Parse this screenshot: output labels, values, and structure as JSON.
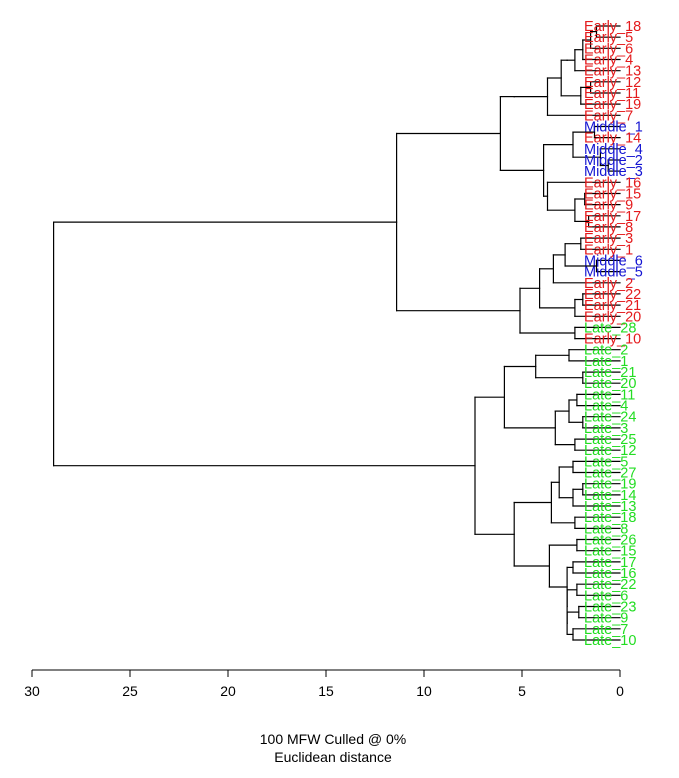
{
  "chart_data": {
    "type": "dendrogram",
    "xlabel": "100 MFW  Culled @ 0%",
    "xlabel2": "Euclidean distance",
    "axis": {
      "ticks": [
        30,
        25,
        20,
        15,
        10,
        5,
        0
      ],
      "xlim": [
        30,
        0
      ],
      "reversed": true
    },
    "group_colors": {
      "Early": "#e41a1c",
      "Middle": "#1414d2",
      "Late": "#22dd22"
    },
    "leaves": [
      {
        "label": "Early_18",
        "group": "Early"
      },
      {
        "label": "Early_5",
        "group": "Early"
      },
      {
        "label": "Early_6",
        "group": "Early"
      },
      {
        "label": "Early_4",
        "group": "Early"
      },
      {
        "label": "Early_13",
        "group": "Early"
      },
      {
        "label": "Early_12",
        "group": "Early"
      },
      {
        "label": "Early_11",
        "group": "Early"
      },
      {
        "label": "Early_19",
        "group": "Early"
      },
      {
        "label": "Early_7",
        "group": "Early"
      },
      {
        "label": "Middle_1",
        "group": "Middle"
      },
      {
        "label": "Early_14",
        "group": "Early"
      },
      {
        "label": "Middle_4",
        "group": "Middle"
      },
      {
        "label": "Middle_2",
        "group": "Middle"
      },
      {
        "label": "Middle_3",
        "group": "Middle"
      },
      {
        "label": "Early_16",
        "group": "Early"
      },
      {
        "label": "Early_15",
        "group": "Early"
      },
      {
        "label": "Early_9",
        "group": "Early"
      },
      {
        "label": "Early_17",
        "group": "Early"
      },
      {
        "label": "Early_8",
        "group": "Early"
      },
      {
        "label": "Early_3",
        "group": "Early"
      },
      {
        "label": "Early_1",
        "group": "Early"
      },
      {
        "label": "Middle_6",
        "group": "Middle"
      },
      {
        "label": "Middle_5",
        "group": "Middle"
      },
      {
        "label": "Early_2",
        "group": "Early"
      },
      {
        "label": "Early_22",
        "group": "Early"
      },
      {
        "label": "Early_21",
        "group": "Early"
      },
      {
        "label": "Early_20",
        "group": "Early"
      },
      {
        "label": "Late_28",
        "group": "Late"
      },
      {
        "label": "Early_10",
        "group": "Early"
      },
      {
        "label": "Late_2",
        "group": "Late"
      },
      {
        "label": "Late_1",
        "group": "Late"
      },
      {
        "label": "Late_21",
        "group": "Late"
      },
      {
        "label": "Late_20",
        "group": "Late"
      },
      {
        "label": "Late_11",
        "group": "Late"
      },
      {
        "label": "Late_4",
        "group": "Late"
      },
      {
        "label": "Late_24",
        "group": "Late"
      },
      {
        "label": "Late_3",
        "group": "Late"
      },
      {
        "label": "Late_25",
        "group": "Late"
      },
      {
        "label": "Late_12",
        "group": "Late"
      },
      {
        "label": "Late_5",
        "group": "Late"
      },
      {
        "label": "Late_27",
        "group": "Late"
      },
      {
        "label": "Late_19",
        "group": "Late"
      },
      {
        "label": "Late_14",
        "group": "Late"
      },
      {
        "label": "Late_13",
        "group": "Late"
      },
      {
        "label": "Late_18",
        "group": "Late"
      },
      {
        "label": "Late_8",
        "group": "Late"
      },
      {
        "label": "Late_26",
        "group": "Late"
      },
      {
        "label": "Late_15",
        "group": "Late"
      },
      {
        "label": "Late_17",
        "group": "Late"
      },
      {
        "label": "Late_16",
        "group": "Late"
      },
      {
        "label": "Late_22",
        "group": "Late"
      },
      {
        "label": "Late_6",
        "group": "Late"
      },
      {
        "label": "Late_23",
        "group": "Late"
      },
      {
        "label": "Late_9",
        "group": "Late"
      },
      {
        "label": "Late_7",
        "group": "Late"
      },
      {
        "label": "Late_10",
        "group": "Late"
      }
    ],
    "tree": {
      "h": 28.9,
      "c": [
        {
          "h": 11.4,
          "c": [
            {
              "h": 6.1,
              "c": [
                {
                  "h": 5.4,
                  "c": [
                    {
                      "h": 3.7,
                      "c": [
                        {
                          "h": 3.0,
                          "c": [
                            {
                              "h": 2.7,
                              "c": [
                                {
                                  "h": 2.3,
                                  "c": [
                                    {
                                      "h": 1.9,
                                      "c": [
                                        {
                                          "h": 1.5,
                                          "c": [
                                            {
                                              "h": 1.2,
                                              "c": [
                                                0,
                                                1
                                              ]
                                            },
                                            2
                                          ]
                                        },
                                        3
                                      ]
                                    },
                                    4
                                  ]
                                }
                              ]
                            },
                            {
                              "h": 2.0,
                              "c": [
                                {
                                  "h": 1.5,
                                  "c": [
                                    5,
                                    6
                                  ]
                                },
                                7
                              ]
                            }
                          ]
                        },
                        8
                      ]
                    }
                  ]
                },
                {
                  "h": 3.9,
                  "c": [
                    {
                      "h": 2.4,
                      "c": [
                        {
                          "h": 1.3,
                          "c": [
                            9,
                            10
                          ]
                        },
                        {
                          "h": 1.0,
                          "c": [
                            11,
                            {
                              "h": 0.6,
                              "c": [
                                12,
                                13
                              ]
                            }
                          ]
                        }
                      ]
                    },
                    {
                      "h": 3.7,
                      "c": [
                        14,
                        {
                          "h": 2.3,
                          "c": [
                            {
                              "h": 1.8,
                              "c": [
                                15,
                                16
                              ]
                            },
                            {
                              "h": 1.6,
                              "c": [
                                17,
                                18
                              ]
                            }
                          ]
                        }
                      ]
                    }
                  ]
                }
              ]
            },
            {
              "h": 5.1,
              "c": [
                {
                  "h": 4.1,
                  "c": [
                    {
                      "h": 3.4,
                      "c": [
                        {
                          "h": 2.8,
                          "c": [
                            {
                              "h": 2.0,
                              "c": [
                                19,
                                20
                              ]
                            },
                            {
                              "h": 1.2,
                              "c": [
                                21,
                                22
                              ]
                            }
                          ]
                        },
                        23
                      ]
                    },
                    {
                      "h": 2.3,
                      "c": [
                        {
                          "h": 1.9,
                          "c": [
                            24,
                            25
                          ]
                        },
                        26
                      ]
                    }
                  ]
                },
                {
                  "h": 2.3,
                  "c": [
                    27,
                    28
                  ]
                }
              ]
            }
          ]
        },
        {
          "h": 7.4,
          "c": [
            {
              "h": 5.9,
              "c": [
                {
                  "h": 4.3,
                  "c": [
                    {
                      "h": 2.6,
                      "c": [
                        29,
                        30
                      ]
                    },
                    {
                      "h": 1.9,
                      "c": [
                        31,
                        32
                      ]
                    }
                  ]
                },
                {
                  "h": 3.3,
                  "c": [
                    {
                      "h": 2.6,
                      "c": [
                        {
                          "h": 2.2,
                          "c": [
                            33,
                            34
                          ]
                        },
                        {
                          "h": 1.9,
                          "c": [
                            35,
                            36
                          ]
                        }
                      ]
                    },
                    {
                      "h": 2.3,
                      "c": [
                        37,
                        38
                      ]
                    }
                  ]
                }
              ]
            },
            {
              "h": 5.4,
              "c": [
                {
                  "h": 3.5,
                  "c": [
                    {
                      "h": 3.1,
                      "c": [
                        {
                          "h": 2.4,
                          "c": [
                            39,
                            40
                          ]
                        },
                        {
                          "h": 2.4,
                          "c": [
                            {
                              "h": 1.9,
                              "c": [
                                41,
                                42
                              ]
                            },
                            43
                          ]
                        }
                      ]
                    },
                    {
                      "h": 2.3,
                      "c": [
                        44,
                        45
                      ]
                    }
                  ]
                },
                {
                  "h": 3.6,
                  "c": [
                    {
                      "h": 2.2,
                      "c": [
                        46,
                        47
                      ]
                    },
                    {
                      "h": 2.7,
                      "c": [
                        {
                          "h": 2.4,
                          "c": [
                            48,
                            49
                          ]
                        },
                        {
                          "h": 2.7,
                          "c": [
                            {
                              "h": 2.2,
                              "c": [
                                50,
                                51
                              ]
                            },
                            {
                              "h": 2.7,
                              "c": [
                                {
                                  "h": 2.1,
                                  "c": [
                                    52,
                                    53
                                  ]
                                },
                                {
                                  "h": 2.4,
                                  "c": [
                                    54,
                                    55
                                  ]
                                }
                              ]
                            }
                          ]
                        }
                      ]
                    }
                  ]
                }
              ]
            }
          ]
        }
      ]
    }
  }
}
